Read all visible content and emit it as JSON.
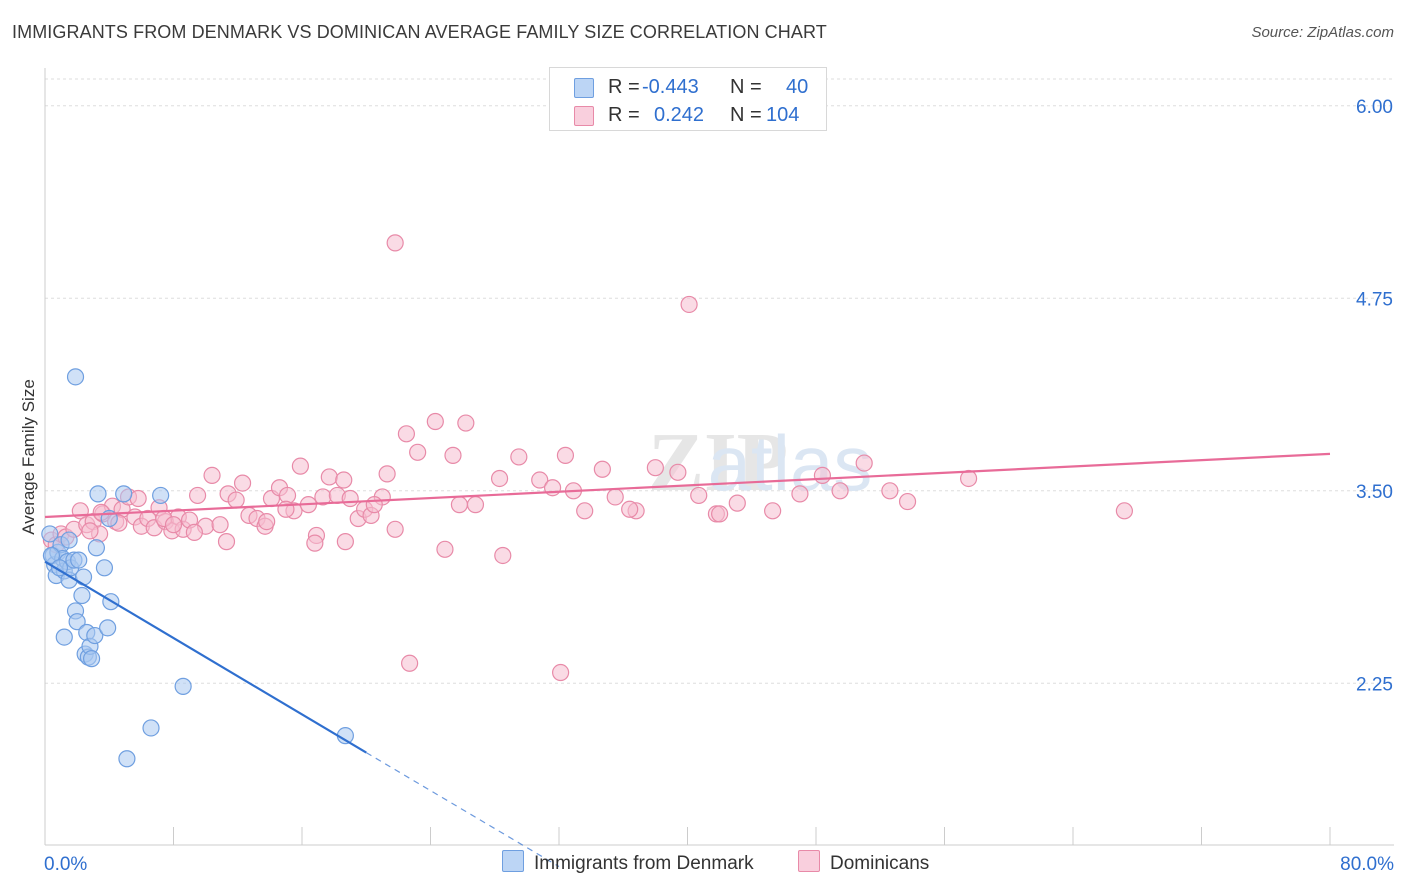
{
  "header": {
    "title": "IMMIGRANTS FROM DENMARK VS DOMINICAN AVERAGE FAMILY SIZE CORRELATION CHART",
    "source": "Source: ZipAtlas.com"
  },
  "watermark": "ZIPatlas",
  "legend_stats": {
    "r_label": "R =",
    "n_label": "N =",
    "series": [
      {
        "r": "-0.443",
        "n": "40"
      },
      {
        "r": "0.242",
        "n": "104"
      }
    ]
  },
  "colors": {
    "blue_fill": "#a9c8f0",
    "blue_stroke": "#6f9fe0",
    "blue_line": "#2f6fcf",
    "pink_fill": "#f6bdd0",
    "pink_stroke": "#e88aa8",
    "pink_line": "#e86b98",
    "value_text": "#2f6fcf",
    "grid": "#dddddd"
  },
  "chart_data": {
    "type": "scatter",
    "title": "IMMIGRANTS FROM DENMARK VS DOMINICAN AVERAGE FAMILY SIZE CORRELATION CHART",
    "xlabel": "",
    "ylabel": "Average Family Size",
    "xlim": [
      0,
      80
    ],
    "ylim": [
      1.2,
      6.2
    ],
    "x_tick_labels": [
      "0.0%",
      "80.0%"
    ],
    "y_ticks": [
      2.25,
      3.5,
      4.75,
      6.0
    ],
    "y_tick_labels": [
      "2.25",
      "3.50",
      "4.75",
      "6.00"
    ],
    "grid": true,
    "series": [
      {
        "name": "Immigrants from Denmark",
        "color": "blue",
        "trend": {
          "x0": 0,
          "y0": 3.04,
          "x1": 20,
          "y1": 1.8,
          "dash_to_x": 32,
          "dash_to_y": 1.06
        },
        "points": [
          [
            0.3,
            3.22
          ],
          [
            0.5,
            3.08
          ],
          [
            0.6,
            3.02
          ],
          [
            0.7,
            2.95
          ],
          [
            0.8,
            3.1
          ],
          [
            1.0,
            3.15
          ],
          [
            1.1,
            3.06
          ],
          [
            1.2,
            2.98
          ],
          [
            1.4,
            3.04
          ],
          [
            1.5,
            2.92
          ],
          [
            1.6,
            3.0
          ],
          [
            1.8,
            3.05
          ],
          [
            1.9,
            2.72
          ],
          [
            2.0,
            2.65
          ],
          [
            2.1,
            3.05
          ],
          [
            2.3,
            2.82
          ],
          [
            2.4,
            2.94
          ],
          [
            2.5,
            2.44
          ],
          [
            2.6,
            2.58
          ],
          [
            2.7,
            2.42
          ],
          [
            2.8,
            2.49
          ],
          [
            2.9,
            2.41
          ],
          [
            3.1,
            2.56
          ],
          [
            3.2,
            3.13
          ],
          [
            3.3,
            3.48
          ],
          [
            3.7,
            3.0
          ],
          [
            3.9,
            2.61
          ],
          [
            4.1,
            2.78
          ],
          [
            4.9,
            3.48
          ],
          [
            7.2,
            3.47
          ],
          [
            1.2,
            2.55
          ],
          [
            1.9,
            4.24
          ],
          [
            8.6,
            2.23
          ],
          [
            6.6,
            1.96
          ],
          [
            5.1,
            1.76
          ],
          [
            18.7,
            1.91
          ],
          [
            4.0,
            3.32
          ],
          [
            0.4,
            3.08
          ],
          [
            0.9,
            3.0
          ],
          [
            1.5,
            3.18
          ]
        ]
      },
      {
        "name": "Dominicans",
        "color": "pink",
        "trend": {
          "x0": 0,
          "y0": 3.33,
          "x1": 80,
          "y1": 3.74
        },
        "points": [
          [
            0.4,
            3.18
          ],
          [
            0.7,
            3.15
          ],
          [
            1.0,
            3.22
          ],
          [
            1.3,
            3.2
          ],
          [
            1.8,
            3.25
          ],
          [
            2.2,
            3.37
          ],
          [
            2.6,
            3.28
          ],
          [
            3.0,
            3.3
          ],
          [
            3.4,
            3.22
          ],
          [
            3.6,
            3.35
          ],
          [
            4.2,
            3.4
          ],
          [
            4.4,
            3.3
          ],
          [
            4.8,
            3.38
          ],
          [
            5.2,
            3.46
          ],
          [
            5.6,
            3.33
          ],
          [
            6.0,
            3.27
          ],
          [
            6.4,
            3.32
          ],
          [
            6.8,
            3.26
          ],
          [
            7.1,
            3.39
          ],
          [
            7.5,
            3.3
          ],
          [
            7.9,
            3.24
          ],
          [
            8.3,
            3.33
          ],
          [
            8.6,
            3.25
          ],
          [
            9.0,
            3.31
          ],
          [
            9.5,
            3.47
          ],
          [
            10.0,
            3.27
          ],
          [
            10.4,
            3.6
          ],
          [
            10.9,
            3.28
          ],
          [
            11.4,
            3.48
          ],
          [
            11.9,
            3.44
          ],
          [
            12.3,
            3.55
          ],
          [
            12.7,
            3.34
          ],
          [
            13.2,
            3.32
          ],
          [
            13.7,
            3.27
          ],
          [
            14.1,
            3.45
          ],
          [
            14.6,
            3.52
          ],
          [
            15.1,
            3.47
          ],
          [
            15.5,
            3.37
          ],
          [
            15.9,
            3.66
          ],
          [
            16.4,
            3.41
          ],
          [
            16.9,
            3.21
          ],
          [
            17.3,
            3.46
          ],
          [
            17.7,
            3.59
          ],
          [
            18.2,
            3.47
          ],
          [
            18.6,
            3.57
          ],
          [
            19.0,
            3.45
          ],
          [
            19.5,
            3.32
          ],
          [
            19.9,
            3.38
          ],
          [
            20.3,
            3.34
          ],
          [
            21.0,
            3.46
          ],
          [
            21.3,
            3.61
          ],
          [
            21.8,
            3.25
          ],
          [
            22.5,
            3.87
          ],
          [
            23.2,
            3.75
          ],
          [
            24.3,
            3.95
          ],
          [
            25.4,
            3.73
          ],
          [
            26.2,
            3.94
          ],
          [
            26.8,
            3.41
          ],
          [
            28.3,
            3.58
          ],
          [
            29.5,
            3.72
          ],
          [
            30.8,
            3.57
          ],
          [
            31.6,
            3.52
          ],
          [
            32.4,
            3.73
          ],
          [
            32.9,
            3.5
          ],
          [
            33.6,
            3.37
          ],
          [
            34.7,
            3.64
          ],
          [
            35.5,
            3.46
          ],
          [
            36.8,
            3.37
          ],
          [
            38.0,
            3.65
          ],
          [
            39.4,
            3.62
          ],
          [
            40.7,
            3.47
          ],
          [
            41.8,
            3.35
          ],
          [
            43.1,
            3.42
          ],
          [
            45.3,
            3.37
          ],
          [
            47.0,
            3.48
          ],
          [
            48.4,
            3.6
          ],
          [
            49.5,
            3.5
          ],
          [
            51.0,
            3.68
          ],
          [
            52.6,
            3.5
          ],
          [
            53.7,
            3.43
          ],
          [
            57.5,
            3.58
          ],
          [
            67.2,
            3.37
          ],
          [
            21.8,
            5.11
          ],
          [
            40.1,
            4.71
          ],
          [
            22.7,
            2.38
          ],
          [
            32.1,
            2.32
          ],
          [
            24.9,
            3.12
          ],
          [
            28.5,
            3.08
          ],
          [
            11.3,
            3.17
          ],
          [
            16.8,
            3.16
          ],
          [
            18.7,
            3.17
          ],
          [
            9.3,
            3.23
          ],
          [
            5.8,
            3.45
          ],
          [
            4.6,
            3.29
          ],
          [
            3.5,
            3.36
          ],
          [
            2.8,
            3.24
          ],
          [
            7.4,
            3.32
          ],
          [
            8.0,
            3.28
          ],
          [
            13.8,
            3.3
          ],
          [
            15.0,
            3.38
          ],
          [
            20.5,
            3.41
          ],
          [
            25.8,
            3.41
          ],
          [
            36.4,
            3.38
          ],
          [
            42.0,
            3.35
          ]
        ]
      }
    ]
  },
  "bottom_legend": {
    "items": [
      {
        "label": "Immigrants from Denmark"
      },
      {
        "label": "Dominicans"
      }
    ]
  }
}
